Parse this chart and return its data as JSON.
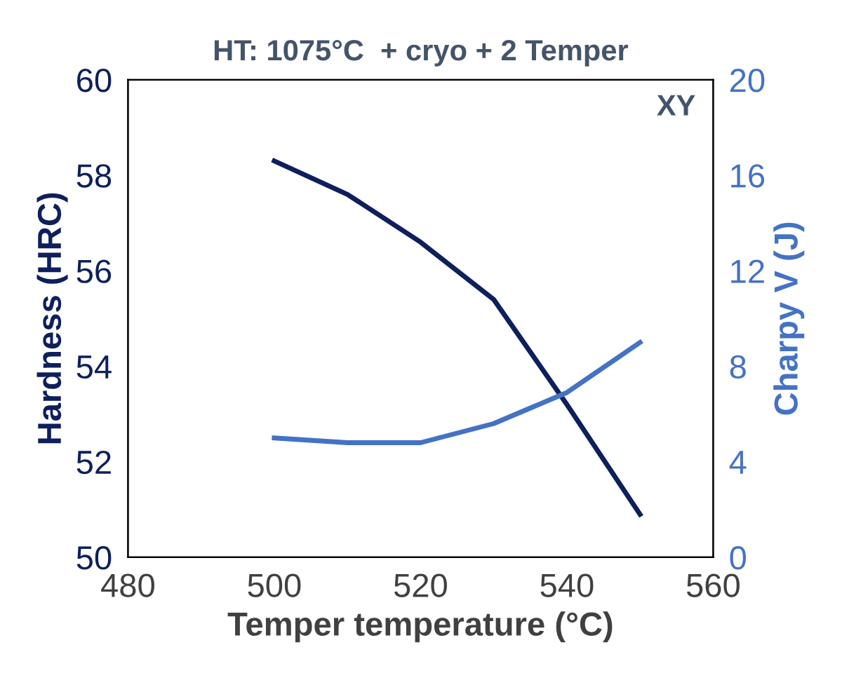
{
  "chart_data": {
    "type": "line",
    "title": "HT: 1075°C  + cryo + 2 Temper",
    "xlabel": "Temper temperature (°C)",
    "ylabel": "Hardness (HRC)",
    "y2label": "Charpy V (J)",
    "annotations": [
      "XY"
    ],
    "x": [
      500,
      510,
      520,
      530,
      540,
      550
    ],
    "series": [
      {
        "name": null,
        "color": "#0d1f5c",
        "values": [
          58.3,
          57.6,
          56.6,
          55.4,
          53.2,
          50.9
        ]
      },
      {
        "name": null,
        "color": "#4472c4",
        "axis": "y2",
        "values": [
          5.0,
          4.8,
          4.8,
          5.6,
          6.9,
          9.0
        ]
      }
    ],
    "xlim": [
      480,
      560
    ],
    "xticks": [
      480,
      500,
      520,
      540,
      560
    ],
    "ylim": [
      50,
      60
    ],
    "yticks": [
      50,
      52,
      54,
      56,
      58,
      60
    ],
    "y2lim": [
      0,
      20
    ],
    "y2ticks": [
      0,
      4,
      8,
      12,
      16,
      20
    ],
    "grid": false,
    "legend": false,
    "marker": "none",
    "line_style": "solid"
  }
}
